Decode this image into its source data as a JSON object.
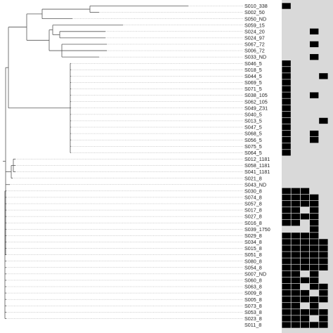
{
  "colors": {
    "background": "#ffffff",
    "tree_line": "#555555",
    "leader_line": "#9a9a9a",
    "matrix_off": "#d9d9d9",
    "matrix_on": "#000000"
  },
  "matrix": {
    "columns": 5,
    "rows": [
      {
        "label": "S010_338",
        "cells": [
          1,
          0,
          0,
          0,
          0
        ]
      },
      {
        "label": "S002_50",
        "cells": [
          0,
          0,
          0,
          0,
          0
        ]
      },
      {
        "label": "S050_ND",
        "cells": [
          0,
          0,
          0,
          0,
          0
        ]
      },
      {
        "label": "S059_15",
        "cells": [
          0,
          0,
          0,
          0,
          0
        ]
      },
      {
        "label": "S024_20",
        "cells": [
          0,
          0,
          0,
          1,
          0
        ]
      },
      {
        "label": "S024_97",
        "cells": [
          0,
          0,
          0,
          0,
          0
        ]
      },
      {
        "label": "S067_72",
        "cells": [
          0,
          0,
          0,
          1,
          0
        ]
      },
      {
        "label": "S006_72",
        "cells": [
          0,
          0,
          0,
          0,
          0
        ]
      },
      {
        "label": "S033_ND",
        "cells": [
          0,
          0,
          0,
          1,
          0
        ]
      },
      {
        "label": "S046_5",
        "cells": [
          1,
          0,
          0,
          0,
          0
        ]
      },
      {
        "label": "S018_5",
        "cells": [
          1,
          0,
          0,
          0,
          0
        ]
      },
      {
        "label": "S044_5",
        "cells": [
          1,
          0,
          0,
          0,
          1
        ]
      },
      {
        "label": "S069_5",
        "cells": [
          1,
          0,
          0,
          0,
          0
        ]
      },
      {
        "label": "S071_5",
        "cells": [
          1,
          0,
          0,
          0,
          0
        ]
      },
      {
        "label": "S038_105",
        "cells": [
          1,
          0,
          0,
          1,
          0
        ]
      },
      {
        "label": "S062_105",
        "cells": [
          1,
          0,
          0,
          0,
          0
        ]
      },
      {
        "label": "S049_Z31",
        "cells": [
          1,
          0,
          0,
          0,
          0
        ]
      },
      {
        "label": "S040_5",
        "cells": [
          1,
          0,
          0,
          0,
          0
        ]
      },
      {
        "label": "S013_5",
        "cells": [
          1,
          0,
          0,
          0,
          1
        ]
      },
      {
        "label": "S047_5",
        "cells": [
          1,
          0,
          0,
          0,
          0
        ]
      },
      {
        "label": "S068_5",
        "cells": [
          1,
          0,
          0,
          1,
          0
        ]
      },
      {
        "label": "S056_5",
        "cells": [
          1,
          0,
          0,
          1,
          0
        ]
      },
      {
        "label": "S075_5",
        "cells": [
          1,
          0,
          0,
          0,
          0
        ]
      },
      {
        "label": "S064_5",
        "cells": [
          1,
          0,
          0,
          0,
          0
        ]
      },
      {
        "label": "S012_1181",
        "cells": [
          0,
          0,
          0,
          0,
          0
        ]
      },
      {
        "label": "S058_1181",
        "cells": [
          0,
          0,
          0,
          0,
          0
        ]
      },
      {
        "label": "S041_1181",
        "cells": [
          0,
          0,
          0,
          0,
          0
        ]
      },
      {
        "label": "S021_8",
        "cells": [
          0,
          0,
          0,
          0,
          0
        ]
      },
      {
        "label": "S043_ND",
        "cells": [
          0,
          0,
          0,
          0,
          0
        ]
      },
      {
        "label": "S030_8",
        "cells": [
          1,
          1,
          1,
          0,
          0
        ]
      },
      {
        "label": "S074_8",
        "cells": [
          1,
          1,
          1,
          1,
          0
        ]
      },
      {
        "label": "S057_8",
        "cells": [
          1,
          1,
          1,
          1,
          0
        ]
      },
      {
        "label": "S017_8",
        "cells": [
          1,
          1,
          0,
          1,
          0
        ]
      },
      {
        "label": "S027_8",
        "cells": [
          1,
          1,
          1,
          1,
          0
        ]
      },
      {
        "label": "S016_8",
        "cells": [
          1,
          1,
          0,
          1,
          0
        ]
      },
      {
        "label": "S039_1750",
        "cells": [
          0,
          0,
          0,
          1,
          0
        ]
      },
      {
        "label": "S029_8",
        "cells": [
          1,
          1,
          1,
          1,
          0
        ]
      },
      {
        "label": "S034_8",
        "cells": [
          1,
          1,
          1,
          1,
          1
        ]
      },
      {
        "label": "S015_8",
        "cells": [
          1,
          1,
          1,
          1,
          1
        ]
      },
      {
        "label": "S051_8",
        "cells": [
          1,
          1,
          1,
          1,
          1
        ]
      },
      {
        "label": "S080_8",
        "cells": [
          1,
          1,
          1,
          1,
          1
        ]
      },
      {
        "label": "S054_8",
        "cells": [
          1,
          1,
          1,
          1,
          1
        ]
      },
      {
        "label": "S007_ND",
        "cells": [
          1,
          1,
          0,
          1,
          0
        ]
      },
      {
        "label": "S060_8",
        "cells": [
          1,
          1,
          1,
          1,
          0
        ]
      },
      {
        "label": "S063_8",
        "cells": [
          1,
          1,
          0,
          1,
          1
        ]
      },
      {
        "label": "S009_8",
        "cells": [
          1,
          1,
          1,
          0,
          1
        ]
      },
      {
        "label": "S005_8",
        "cells": [
          1,
          1,
          1,
          1,
          1
        ]
      },
      {
        "label": "S073_8",
        "cells": [
          1,
          1,
          0,
          1,
          0
        ]
      },
      {
        "label": "S053_8",
        "cells": [
          1,
          1,
          1,
          1,
          1
        ]
      },
      {
        "label": "S023_8",
        "cells": [
          1,
          1,
          1,
          0,
          1
        ]
      },
      {
        "label": "S011_8",
        "cells": [
          1,
          1,
          1,
          1,
          1
        ]
      }
    ]
  }
}
